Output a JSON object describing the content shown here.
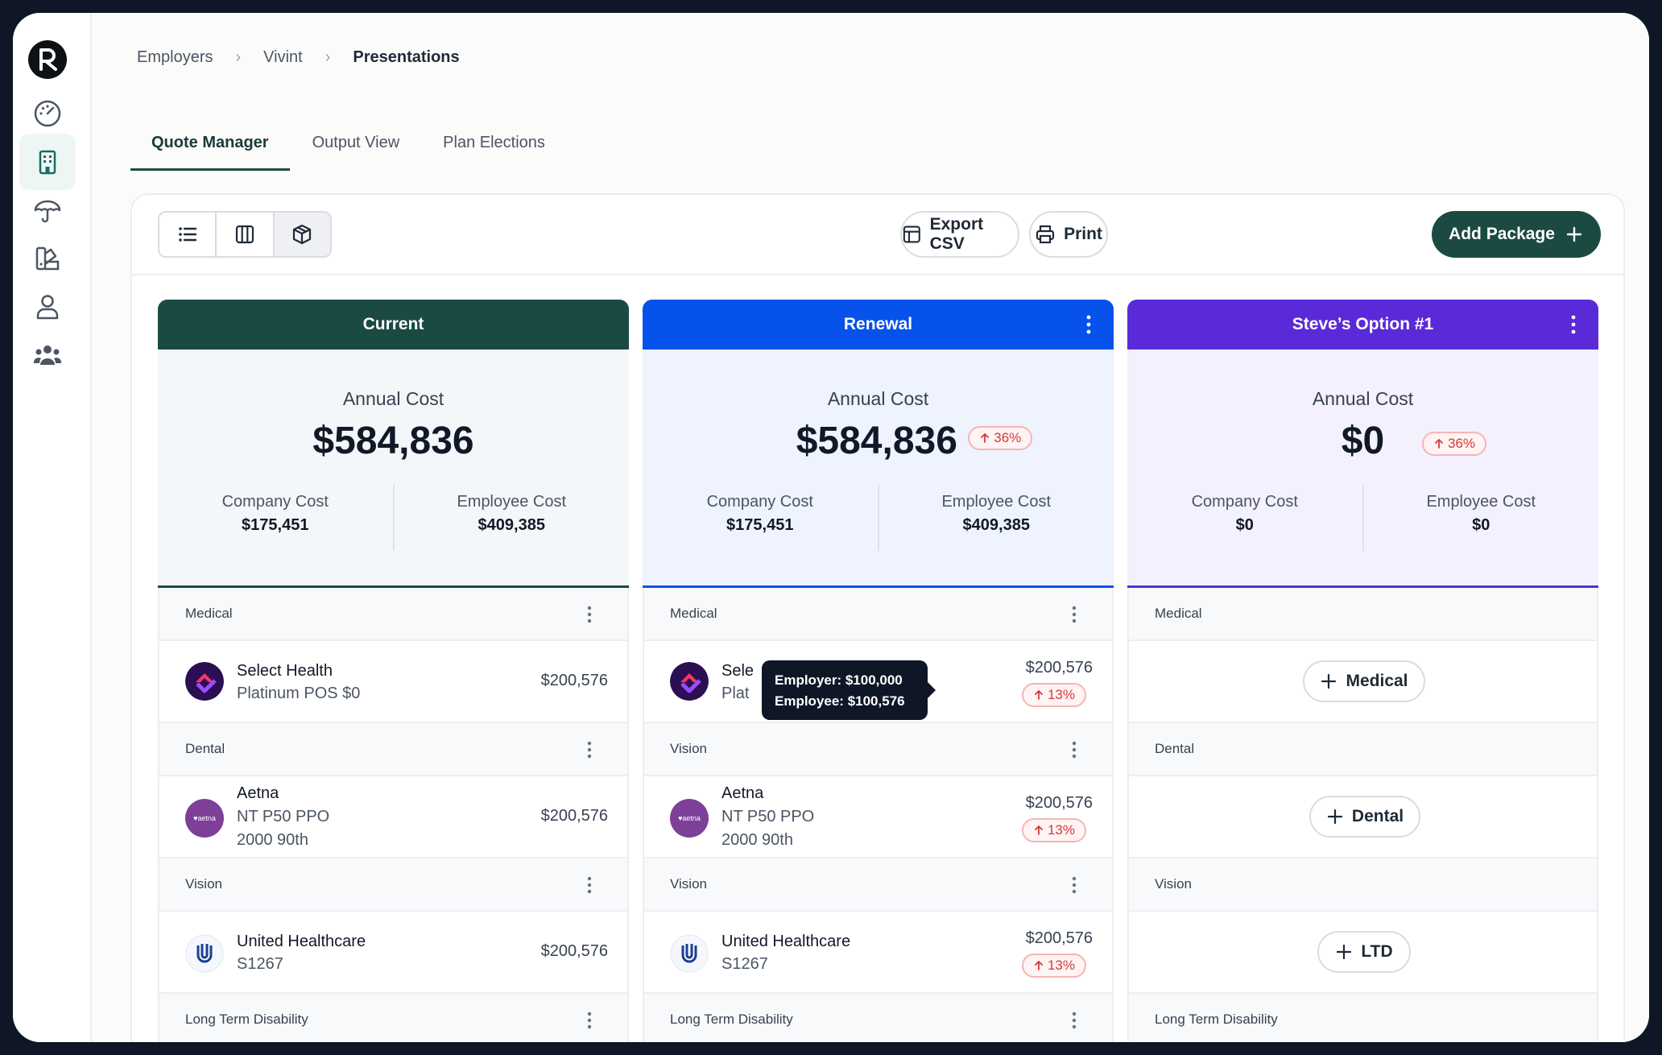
{
  "breadcrumb": {
    "items": [
      "Employers",
      "Vivint",
      "Presentations"
    ],
    "separator": "›"
  },
  "tabs": [
    "Quote Manager",
    "Output View",
    "Plan Elections"
  ],
  "toolbar": {
    "export_label": "Export CSV",
    "print_label": "Print",
    "add_package_label": "Add Package"
  },
  "colors": {
    "current": "#1b4a43",
    "renewal": "#0652ea",
    "option": "#5a2ad8"
  },
  "packages": [
    {
      "title": "Current",
      "annual_cost_label": "Annual Cost",
      "annual_cost": "$584,836",
      "company_cost_label": "Company Cost",
      "company_cost": "$175,451",
      "employee_cost_label": "Employee Cost",
      "employee_cost": "$409,385",
      "sections": [
        {
          "label": "Medical",
          "carrier": "Select Health",
          "plan": "Platinum POS $0",
          "price": "$200,576"
        },
        {
          "label": "Dental",
          "carrier": "Aetna",
          "plan": "NT P50 PPO",
          "plan2": "2000 90th",
          "price": "$200,576"
        },
        {
          "label": "Vision",
          "carrier": "United Healthcare",
          "plan": "S1267",
          "price": "$200,576"
        },
        {
          "label": "Long Term Disability"
        }
      ]
    },
    {
      "title": "Renewal",
      "annual_cost_label": "Annual Cost",
      "annual_cost": "$584,836",
      "change": "36%",
      "company_cost_label": "Company Cost",
      "company_cost": "$175,451",
      "employee_cost_label": "Employee Cost",
      "employee_cost": "$409,385",
      "sections": [
        {
          "label": "Medical",
          "carrier": "Sele",
          "plan": "Plat",
          "price": "$200,576",
          "change": "13%"
        },
        {
          "label": "Vision",
          "carrier": "Aetna",
          "plan": "NT P50 PPO",
          "plan2": "2000 90th",
          "price": "$200,576",
          "change": "13%"
        },
        {
          "label": "Vision",
          "carrier": "United Healthcare",
          "plan": "S1267",
          "price": "$200,576",
          "change": "13%"
        },
        {
          "label": "Long Term Disability"
        }
      ]
    },
    {
      "title": "Steve’s Option #1",
      "annual_cost_label": "Annual Cost",
      "annual_cost": "$0",
      "change": "36%",
      "company_cost_label": "Company Cost",
      "company_cost": "$0",
      "employee_cost_label": "Employee Cost",
      "employee_cost": "$0",
      "sections": [
        {
          "label": "Medical",
          "add_label": "Medical"
        },
        {
          "label": "Dental",
          "add_label": "Dental"
        },
        {
          "label": "Vision",
          "add_label": "LTD"
        },
        {
          "label": "Long Term Disability"
        }
      ]
    }
  ],
  "tooltip": {
    "line1": "Employer: $100,000",
    "line2": "Employee: $100,576"
  },
  "carrier_logos": {
    "aetna": "♥aetna"
  }
}
